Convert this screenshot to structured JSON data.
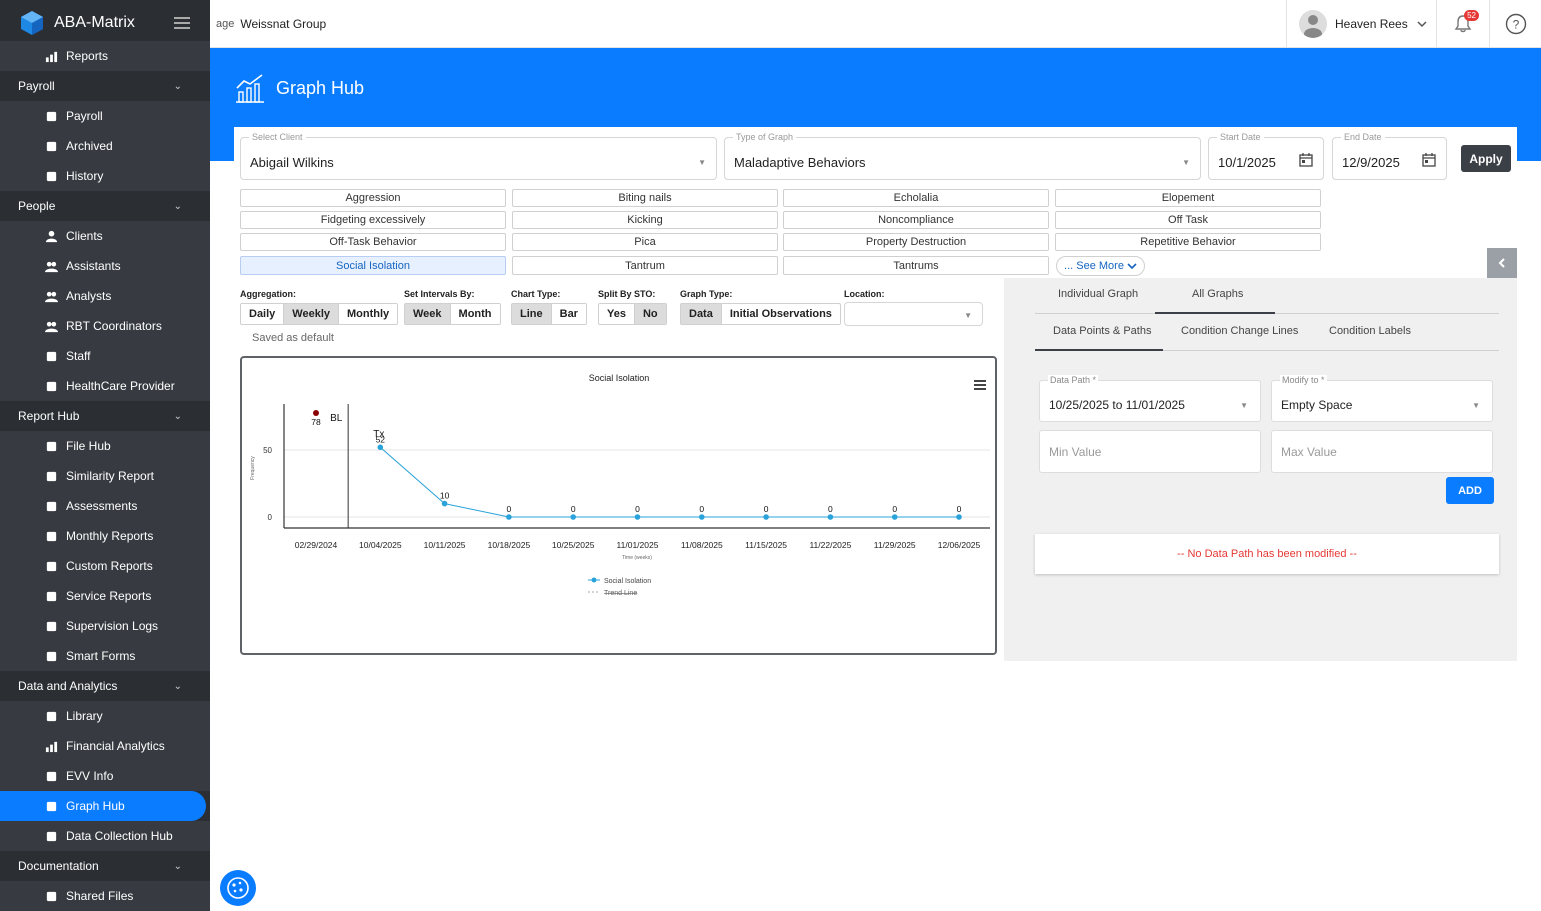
{
  "sidebar": {
    "app_title": "ABA-Matrix",
    "items": [
      {
        "kind": "item",
        "label": "Reports",
        "icon": "bar-chart-icon"
      },
      {
        "kind": "section",
        "label": "Payroll"
      },
      {
        "kind": "item",
        "label": "Payroll",
        "icon": "money-icon"
      },
      {
        "kind": "item",
        "label": "Archived",
        "icon": "archive-icon"
      },
      {
        "kind": "item",
        "label": "History",
        "icon": "history-icon"
      },
      {
        "kind": "section",
        "label": "People"
      },
      {
        "kind": "item",
        "label": "Clients",
        "icon": "person-icon"
      },
      {
        "kind": "item",
        "label": "Assistants",
        "icon": "group-icon"
      },
      {
        "kind": "item",
        "label": "Analysts",
        "icon": "group-icon"
      },
      {
        "kind": "item",
        "label": "RBT Coordinators",
        "icon": "group-icon"
      },
      {
        "kind": "item",
        "label": "Staff",
        "icon": "staff-icon"
      },
      {
        "kind": "item",
        "label": "HealthCare Provider",
        "icon": "medical-bag-icon"
      },
      {
        "kind": "section",
        "label": "Report Hub"
      },
      {
        "kind": "item",
        "label": "File Hub",
        "icon": "cloud-icon"
      },
      {
        "kind": "item",
        "label": "Similarity Report",
        "icon": "report-icon"
      },
      {
        "kind": "item",
        "label": "Assessments",
        "icon": "clipboard-icon"
      },
      {
        "kind": "item",
        "label": "Monthly Reports",
        "icon": "document-icon"
      },
      {
        "kind": "item",
        "label": "Custom Reports",
        "icon": "document-icon"
      },
      {
        "kind": "item",
        "label": "Service Reports",
        "icon": "document-icon"
      },
      {
        "kind": "item",
        "label": "Supervision Logs",
        "icon": "monitor-icon"
      },
      {
        "kind": "item",
        "label": "Smart Forms",
        "icon": "form-icon"
      },
      {
        "kind": "section",
        "label": "Data and Analytics"
      },
      {
        "kind": "item",
        "label": "Library",
        "icon": "library-icon"
      },
      {
        "kind": "item",
        "label": "Financial Analytics",
        "icon": "bar-chart-icon"
      },
      {
        "kind": "item",
        "label": "EVV Info",
        "icon": "evv-icon"
      },
      {
        "kind": "item",
        "label": "Graph Hub",
        "icon": "graph-icon",
        "active": true
      },
      {
        "kind": "item",
        "label": "Data Collection Hub",
        "icon": "trophy-icon"
      },
      {
        "kind": "section",
        "label": "Documentation"
      },
      {
        "kind": "item",
        "label": "Shared Files",
        "icon": "shared-files-icon"
      }
    ]
  },
  "topbar": {
    "broken_img_alt": "age",
    "org_name": "Weissnat Group",
    "user_name": "Heaven Rees",
    "notif_count": "52"
  },
  "header": {
    "title": "Graph Hub"
  },
  "filters": {
    "client": {
      "label": "Select Client",
      "value": "Abigail Wilkins"
    },
    "graph_type": {
      "label": "Type of Graph",
      "value": "Maladaptive Behaviors"
    },
    "start_date": {
      "label": "Start Date",
      "value": "10/1/2025"
    },
    "end_date": {
      "label": "End Date",
      "value": "12/9/2025"
    },
    "apply_label": "Apply"
  },
  "behaviors": [
    "Aggression",
    "Biting nails",
    "Echolalia",
    "Elopement",
    "Fidgeting excessively",
    "Kicking",
    "Noncompliance",
    "Off Task",
    "Off-Task Behavior",
    "Pica",
    "Property Destruction",
    "Repetitive Behavior",
    "Social Isolation",
    "Tantrum",
    "Tantrums"
  ],
  "selected_behavior": "Social Isolation",
  "see_more_label": "... See More",
  "controls": {
    "aggregation": {
      "label": "Aggregation:",
      "options": [
        "Daily",
        "Weekly",
        "Monthly"
      ],
      "selected": "Weekly"
    },
    "intervals": {
      "label": "Set Intervals By:",
      "options": [
        "Week",
        "Month"
      ],
      "selected": "Week"
    },
    "chart_type": {
      "label": "Chart Type:",
      "options": [
        "Line",
        "Bar"
      ],
      "selected": "Line"
    },
    "split": {
      "label": "Split By STO:",
      "options": [
        "Yes",
        "No"
      ],
      "selected": "No"
    },
    "graph_type": {
      "label": "Graph Type:",
      "options": [
        "Data",
        "Initial Observations"
      ],
      "selected": "Data"
    },
    "location": {
      "label": "Location:",
      "value": ""
    },
    "saved_text": "Saved as default"
  },
  "chart_data": {
    "type": "line",
    "title": "Social Isolation",
    "xlabel": "Time (weeks)",
    "ylabel": "Frequency",
    "x": [
      "02/29/2024",
      "10/04/2025",
      "10/11/2025",
      "10/18/2025",
      "10/25/2025",
      "11/01/2025",
      "11/08/2025",
      "11/15/2025",
      "11/22/2025",
      "11/29/2025",
      "12/06/2025"
    ],
    "series": [
      {
        "name": "Social Isolation",
        "values": [
          null,
          52,
          10,
          0,
          0,
          0,
          0,
          0,
          0,
          0,
          0
        ],
        "color": "#29a3d9"
      }
    ],
    "baseline_point": {
      "x": "02/29/2024",
      "value": 78,
      "color": "#8b0000"
    },
    "phase_labels": [
      "BL",
      "Tx"
    ],
    "y_ticks": [
      0,
      50
    ],
    "trend_line_label": "Trend Line",
    "grid": true,
    "legend": "bottom"
  },
  "right_panel": {
    "tabs": [
      "Individual Graph",
      "All Graphs"
    ],
    "active_tab": "All Graphs",
    "subtabs": [
      "Data Points & Paths",
      "Condition Change Lines",
      "Condition Labels"
    ],
    "active_subtab": "Data Points & Paths",
    "data_path": {
      "label": "Data Path *",
      "value": "10/25/2025 to 11/01/2025"
    },
    "modify_to": {
      "label": "Modify to *",
      "value": "Empty Space"
    },
    "min_placeholder": "Min Value",
    "max_placeholder": "Max Value",
    "add_label": "ADD",
    "no_data_message": "-- No Data Path has been modified --"
  }
}
